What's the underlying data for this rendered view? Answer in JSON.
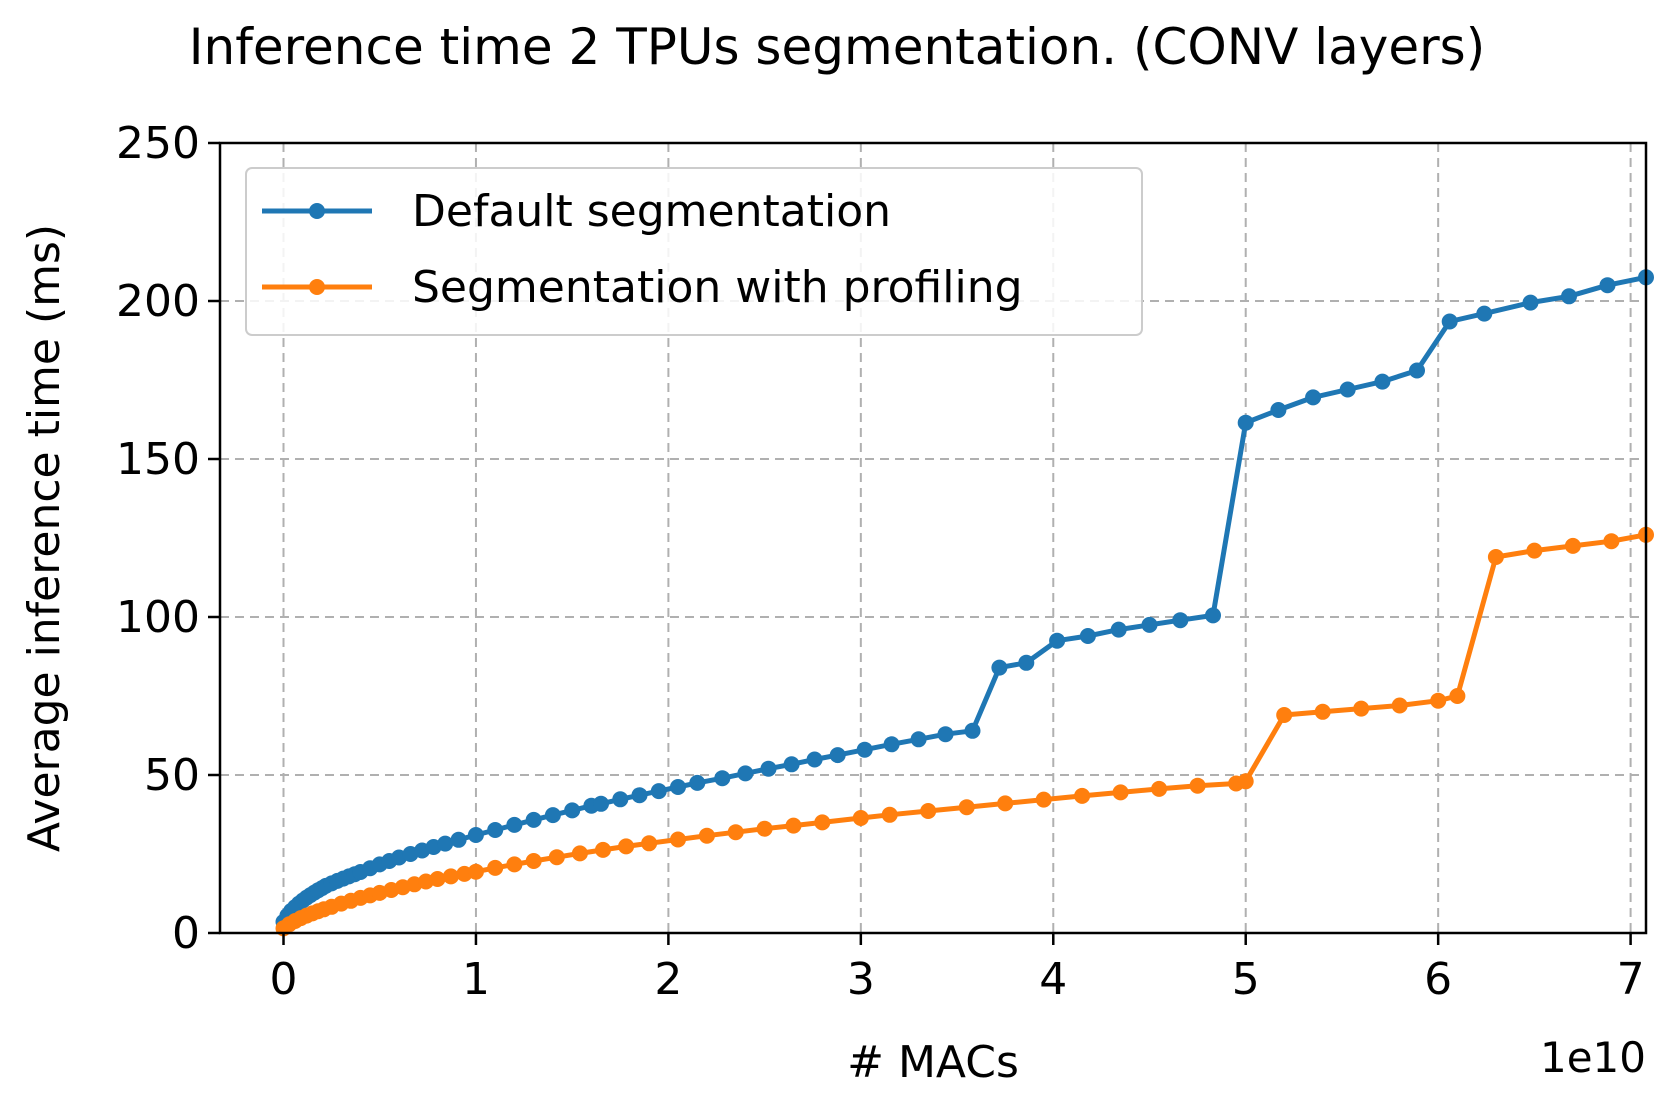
{
  "chart_data": {
    "type": "line",
    "title": "Inference time 2 TPUs segmentation. (CONV layers)",
    "xlabel": "# MACs",
    "ylabel": "Average inference time (ms)",
    "x_offset_label": "1e10",
    "x_scale": 10000000000,
    "xlim": [
      -0.33,
      7.08
    ],
    "ylim": [
      0,
      250
    ],
    "x_ticks": [
      0,
      1,
      2,
      3,
      4,
      5,
      6,
      7
    ],
    "x_tick_labels": [
      "0",
      "1",
      "2",
      "3",
      "4",
      "5",
      "6",
      "7"
    ],
    "y_ticks": [
      0,
      50,
      100,
      150,
      200,
      250
    ],
    "y_tick_labels": [
      "0",
      "50",
      "100",
      "150",
      "200",
      "250"
    ],
    "grid": true,
    "legend_position": "upper-left",
    "series": [
      {
        "name": "Default segmentation",
        "color": "#1f77b4",
        "x": [
          0.0,
          0.02,
          0.04,
          0.06,
          0.08,
          0.1,
          0.12,
          0.14,
          0.16,
          0.18,
          0.2,
          0.22,
          0.25,
          0.28,
          0.31,
          0.34,
          0.37,
          0.4,
          0.45,
          0.5,
          0.55,
          0.6,
          0.66,
          0.72,
          0.78,
          0.84,
          0.91,
          1.0,
          1.1,
          1.2,
          1.3,
          1.4,
          1.5,
          1.6,
          1.65,
          1.75,
          1.85,
          1.95,
          2.05,
          2.15,
          2.28,
          2.4,
          2.52,
          2.64,
          2.76,
          2.88,
          3.02,
          3.16,
          3.3,
          3.44,
          3.58,
          3.72,
          3.86,
          4.02,
          4.18,
          4.34,
          4.5,
          4.66,
          4.83,
          5.0,
          5.17,
          5.35,
          5.53,
          5.71,
          5.89,
          6.06,
          6.24,
          6.48,
          6.68,
          6.88,
          7.08
        ],
        "y": [
          3.5,
          5.5,
          7,
          8.2,
          9.3,
          10.3,
          11.2,
          12,
          12.8,
          13.5,
          14.2,
          14.9,
          15.7,
          16.5,
          17.2,
          17.9,
          18.6,
          19.3,
          20.5,
          21.7,
          22.8,
          23.9,
          25,
          26.1,
          27.2,
          28.3,
          29.5,
          31,
          32.6,
          34.2,
          35.8,
          37.3,
          38.8,
          40.3,
          40.9,
          42.3,
          43.6,
          44.9,
          46.2,
          47.5,
          49,
          50.5,
          52,
          53.4,
          54.9,
          56.3,
          58,
          59.7,
          61.3,
          62.9,
          64,
          84,
          85.5,
          92.5,
          94,
          96,
          97.5,
          99,
          100.5,
          161.5,
          165.5,
          169.5,
          172,
          174.5,
          178,
          193.5,
          196,
          199.5,
          201.5,
          205,
          207.5
        ]
      },
      {
        "name": "Segmentation with profiling",
        "color": "#ff7f0e",
        "x": [
          0.0,
          0.03,
          0.06,
          0.09,
          0.12,
          0.15,
          0.18,
          0.21,
          0.25,
          0.3,
          0.35,
          0.4,
          0.45,
          0.5,
          0.56,
          0.62,
          0.68,
          0.74,
          0.8,
          0.87,
          0.94,
          1.0,
          1.1,
          1.2,
          1.3,
          1.42,
          1.54,
          1.66,
          1.78,
          1.9,
          2.05,
          2.2,
          2.35,
          2.5,
          2.65,
          2.8,
          3.0,
          3.15,
          3.35,
          3.55,
          3.75,
          3.95,
          4.15,
          4.35,
          4.55,
          4.75,
          4.95,
          5.0,
          5.2,
          5.4,
          5.6,
          5.8,
          6.0,
          6.1,
          6.3,
          6.5,
          6.7,
          6.9,
          7.08
        ],
        "y": [
          1.5,
          2.8,
          3.8,
          4.7,
          5.5,
          6.2,
          6.9,
          7.5,
          8.3,
          9.3,
          10.2,
          11.1,
          11.9,
          12.7,
          13.6,
          14.5,
          15.4,
          16.3,
          17.1,
          17.9,
          18.7,
          19.4,
          20.6,
          21.7,
          22.8,
          24,
          25.2,
          26.3,
          27.4,
          28.4,
          29.6,
          30.8,
          31.9,
          33,
          34,
          35,
          36.4,
          37.4,
          38.6,
          39.8,
          41,
          42.2,
          43.4,
          44.5,
          45.6,
          46.6,
          47.3,
          48,
          69,
          70,
          71,
          72,
          73.5,
          75,
          119,
          121,
          122.5,
          124,
          126
        ]
      }
    ]
  }
}
